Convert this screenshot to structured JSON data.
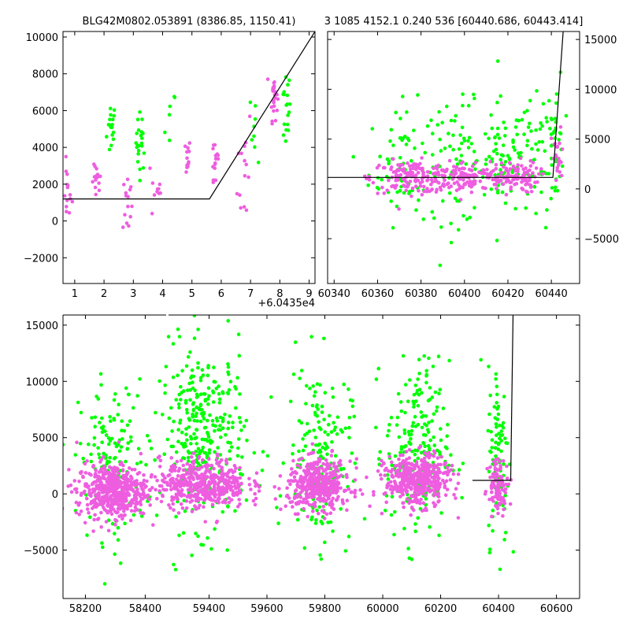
{
  "chart_data": [
    {
      "type": "scatter",
      "title": "BLG42M0802.053891 (8386.85, 1150.41)",
      "xlabel": "",
      "ylabel": "",
      "xlim": [
        0.6,
        9.2
      ],
      "ylim": [
        -3400,
        10300
      ],
      "xticks": [
        1,
        2,
        3,
        4,
        5,
        6,
        7,
        8,
        9
      ],
      "yticks": [
        -2000,
        0,
        2000,
        4000,
        6000,
        8000,
        10000
      ],
      "offset_text": "+6.0435e4",
      "model_line": {
        "x": [
          0.6,
          5.6,
          9.2
        ],
        "y": [
          1200,
          1200,
          10300
        ]
      },
      "series": [
        {
          "color": "#00ff00",
          "clusters": [
            {
              "x": 2.25,
              "y": 5000,
              "sx": 0.08,
              "sy": 800,
              "n": 18
            },
            {
              "x": 3.25,
              "y": 4300,
              "sx": 0.08,
              "sy": 800,
              "n": 22
            },
            {
              "x": 4.25,
              "y": 5000,
              "sx": 0.1,
              "sy": 1200,
              "n": 6
            },
            {
              "x": 7.2,
              "y": 5200,
              "sx": 0.1,
              "sy": 1000,
              "n": 8
            },
            {
              "x": 8.2,
              "y": 6000,
              "sx": 0.08,
              "sy": 1100,
              "n": 18
            }
          ]
        },
        {
          "color": "#ee5de0",
          "clusters": [
            {
              "x": 0.75,
              "y": 1500,
              "sx": 0.08,
              "sy": 800,
              "n": 14
            },
            {
              "x": 1.75,
              "y": 2000,
              "sx": 0.08,
              "sy": 500,
              "n": 14
            },
            {
              "x": 2.8,
              "y": 1000,
              "sx": 0.08,
              "sy": 900,
              "n": 14
            },
            {
              "x": 3.8,
              "y": 1800,
              "sx": 0.1,
              "sy": 1000,
              "n": 10
            },
            {
              "x": 4.8,
              "y": 3500,
              "sx": 0.08,
              "sy": 500,
              "n": 14
            },
            {
              "x": 5.8,
              "y": 3200,
              "sx": 0.08,
              "sy": 900,
              "n": 16
            },
            {
              "x": 6.8,
              "y": 3000,
              "sx": 0.12,
              "sy": 1800,
              "n": 14
            },
            {
              "x": 7.8,
              "y": 6900,
              "sx": 0.06,
              "sy": 700,
              "n": 22
            }
          ]
        }
      ]
    },
    {
      "type": "scatter",
      "title": "3 1085 4152.1 0.240 536 [60440.686, 60443.414]",
      "xlabel": "",
      "ylabel": "",
      "xlim": [
        60337,
        60453
      ],
      "ylim": [
        -9500,
        15800
      ],
      "xticks": [
        60340,
        60360,
        60380,
        60400,
        60420,
        60440
      ],
      "yticks": [
        -5000,
        0,
        5000,
        10000,
        15000
      ],
      "model_line": {
        "x": [
          60337,
          60440.7,
          60445.5
        ],
        "y": [
          1150,
          1150,
          16000
        ]
      },
      "series": [
        {
          "color": "#00ff00",
          "clusters": [
            {
              "x": 60372,
              "y": 2500,
              "sx": 8,
              "sy": 3000,
              "n": 70
            },
            {
              "x": 60397,
              "y": 2500,
              "sx": 8,
              "sy": 3000,
              "n": 70
            },
            {
              "x": 60418,
              "y": 3000,
              "sx": 6,
              "sy": 3000,
              "n": 70
            },
            {
              "x": 60432,
              "y": 2500,
              "sx": 4,
              "sy": 3000,
              "n": 40
            },
            {
              "x": 60442,
              "y": 5000,
              "sx": 2,
              "sy": 3500,
              "n": 40
            }
          ]
        },
        {
          "color": "#ee5de0",
          "clusters": [
            {
              "x": 60375,
              "y": 1200,
              "sx": 9,
              "sy": 800,
              "n": 130
            },
            {
              "x": 60400,
              "y": 1200,
              "sx": 9,
              "sy": 800,
              "n": 130
            },
            {
              "x": 60422,
              "y": 1200,
              "sx": 6,
              "sy": 800,
              "n": 100
            },
            {
              "x": 60443,
              "y": 3000,
              "sx": 1.5,
              "sy": 1500,
              "n": 25
            }
          ]
        }
      ]
    },
    {
      "type": "scatter",
      "title": "",
      "xlabel": "",
      "ylabel": "",
      "xlim": [
        58125,
        60680
      ],
      "ylim": [
        -9300,
        15900
      ],
      "xticks": [
        58200,
        58400,
        59400,
        59600,
        59800,
        60000,
        60200,
        60400,
        60600
      ],
      "yticks": [
        -5000,
        0,
        5000,
        10000,
        15000
      ],
      "x_break": [
        58470,
        58480
      ],
      "model_line": {
        "x": [
          60310,
          60442,
          60450
        ],
        "y": [
          1200,
          1200,
          16000
        ]
      },
      "series": [
        {
          "color": "#00ff00",
          "clusters": [
            {
              "x": 58290,
              "y": 3000,
              "sx": 55,
              "sy": 3500,
              "n": 140
            },
            {
              "x": 59380,
              "y": 5000,
              "sx": 75,
              "sy": 4000,
              "n": 320
            },
            {
              "x": 59780,
              "y": 3500,
              "sx": 55,
              "sy": 4000,
              "n": 170
            },
            {
              "x": 60120,
              "y": 3800,
              "sx": 55,
              "sy": 4000,
              "n": 220
            },
            {
              "x": 60400,
              "y": 3500,
              "sx": 18,
              "sy": 4000,
              "n": 90
            }
          ]
        },
        {
          "color": "#ee5de0",
          "clusters": [
            {
              "x": 58290,
              "y": 300,
              "sx": 60,
              "sy": 1200,
              "n": 500
            },
            {
              "x": 59380,
              "y": 900,
              "sx": 75,
              "sy": 1100,
              "n": 450
            },
            {
              "x": 59780,
              "y": 800,
              "sx": 55,
              "sy": 1100,
              "n": 420
            },
            {
              "x": 60120,
              "y": 1200,
              "sx": 55,
              "sy": 1100,
              "n": 450
            },
            {
              "x": 60400,
              "y": 800,
              "sx": 18,
              "sy": 1200,
              "n": 100
            }
          ]
        }
      ]
    }
  ]
}
